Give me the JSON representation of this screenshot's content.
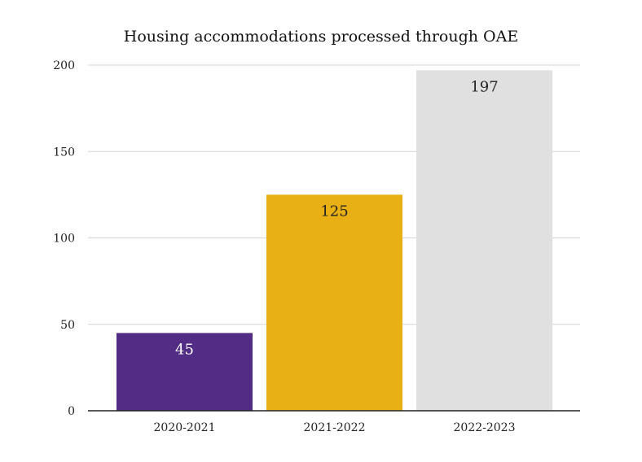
{
  "chart_data": {
    "type": "bar",
    "title": "Housing accommodations processed through OAE",
    "xlabel": "",
    "ylabel": "",
    "categories": [
      "2020-2021",
      "2021-2022",
      "2022-2023"
    ],
    "values": [
      45,
      125,
      197
    ],
    "data_labels": [
      "45",
      "125",
      "197"
    ],
    "bar_colors": [
      "#532c86",
      "#e8b015",
      "#e0e0e0"
    ],
    "label_colors": [
      "#ffffff",
      "#222222",
      "#222222"
    ],
    "ylim": [
      0,
      200
    ],
    "y_ticks": [
      0,
      50,
      100,
      150,
      200
    ],
    "y_tick_labels": [
      "0",
      "50",
      "100",
      "150",
      "200"
    ],
    "grid": true,
    "legend": "none"
  }
}
